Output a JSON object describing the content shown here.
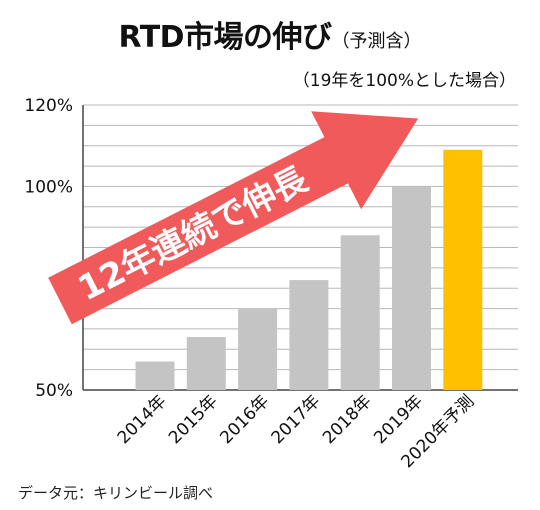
{
  "title": "RTD市場の伸び",
  "subtitle": "（予測含）",
  "note": "（19年を100%とした場合）",
  "arrow_label": "12年連続で伸長",
  "source": "データ元：キリンビール調べ",
  "colors": {
    "bar": "#c4c4c4",
    "highlight": "#ffc000",
    "arrow": "#f05a5a",
    "grid": "#b8b8b8"
  },
  "chart_data": {
    "type": "bar",
    "title": "RTD市場の伸び",
    "categories": [
      "2014年",
      "2015年",
      "2016年",
      "2017年",
      "2018年",
      "2019年",
      "2020年予測"
    ],
    "values": [
      57,
      63,
      70,
      77,
      88,
      100,
      109
    ],
    "highlight_index": 6,
    "ylim": [
      50,
      120
    ],
    "yticks": [
      50,
      100,
      120
    ],
    "ytick_labels": [
      "50%",
      "100%",
      "120%"
    ],
    "grid": true,
    "xlabel": "",
    "ylabel": ""
  }
}
